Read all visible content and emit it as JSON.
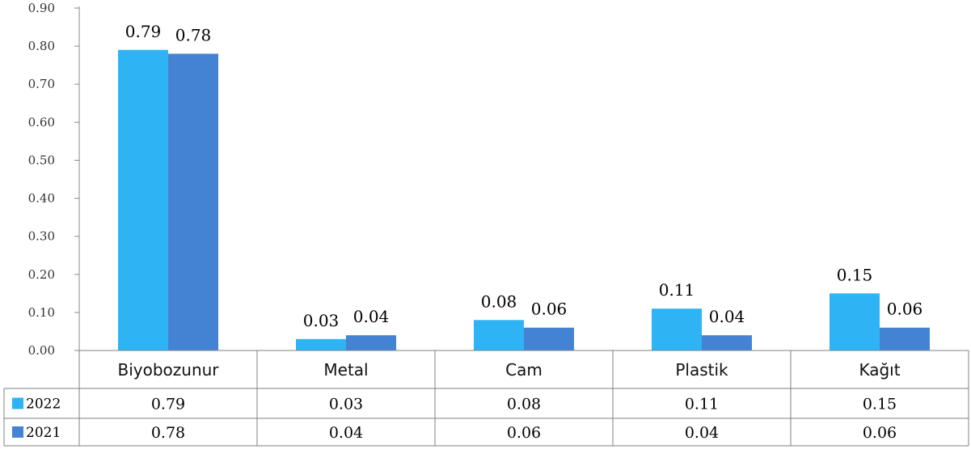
{
  "chart_data": {
    "type": "bar",
    "categories": [
      "Biyobozunur",
      "Metal",
      "Cam",
      "Plastik",
      "Kağıt"
    ],
    "series": [
      {
        "name": "2022",
        "values": [
          0.79,
          0.03,
          0.08,
          0.11,
          0.15
        ],
        "labels": [
          "0.79",
          "0.03",
          "0.08",
          "0.11",
          "0.15"
        ],
        "color": "#2eb4f5"
      },
      {
        "name": "2021",
        "values": [
          0.78,
          0.04,
          0.06,
          0.04,
          0.06
        ],
        "labels": [
          "0.78",
          "0.04",
          "0.06",
          "0.04",
          "0.06"
        ],
        "color": "#4483d4"
      }
    ],
    "yticks": [
      "0.00",
      "0.10",
      "0.20",
      "0.30",
      "0.40",
      "0.50",
      "0.60",
      "0.70",
      "0.80",
      "0.90"
    ],
    "ylim": [
      0,
      0.9
    ],
    "grid": false,
    "data_table": true,
    "legend_position": "data-table"
  }
}
